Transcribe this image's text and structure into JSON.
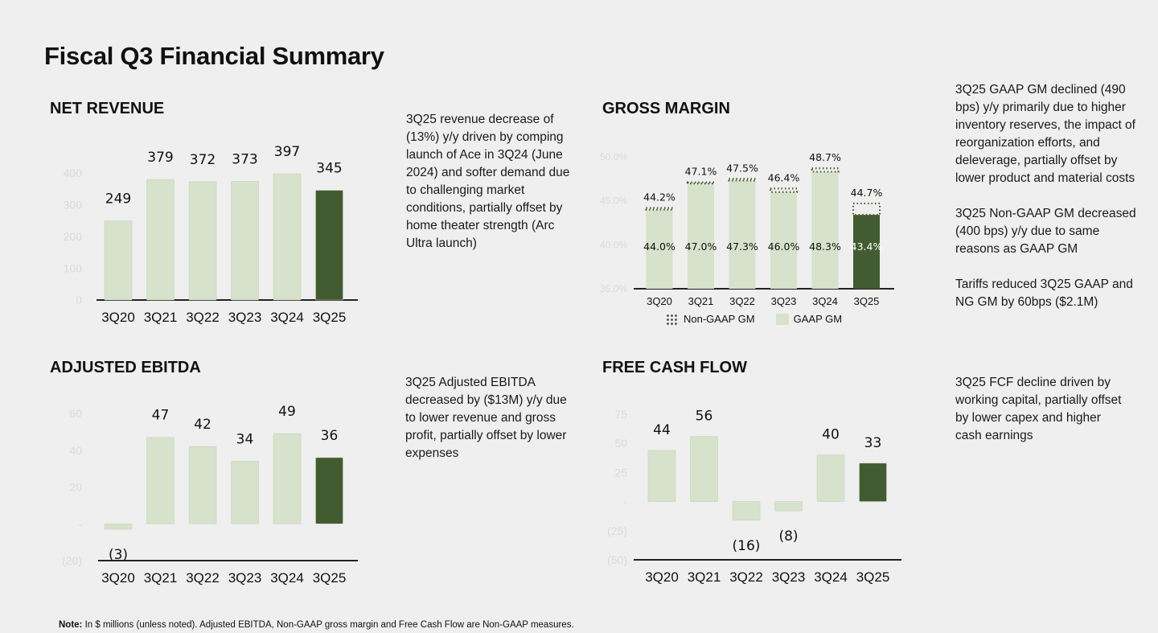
{
  "page": {
    "title": "Fiscal Q3 Financial Summary",
    "note_label": "Note:",
    "note_text": " In $ millions (unless noted). Adjusted EBITDA, Non-GAAP gross margin and Free Cash Flow are Non-GAAP measures."
  },
  "colors": {
    "light_bar": "#d6e2cb",
    "dark_bar": "#435b30",
    "axis": "#222222",
    "background": "#efefef"
  },
  "commentary": {
    "revenue": [
      "3Q25 revenue decrease of (13%) y/y driven by comping launch of Ace in 3Q24 (June 2024) and softer demand due to challenging market conditions, partially offset by home theater strength (Arc Ultra launch)"
    ],
    "gross_margin": [
      "3Q25 GAAP GM declined (490 bps) y/y primarily due to higher inventory reserves, the impact of reorganization efforts, and deleverage, partially offset by lower product and material costs",
      "3Q25 Non-GAAP GM decreased (400 bps) y/y due to same reasons as GAAP GM",
      "Tariffs reduced 3Q25 GAAP and NG GM by 60bps ($2.1M)"
    ],
    "ebitda": [
      "3Q25 Adjusted EBITDA decreased by ($13M) y/y due to lower revenue and gross profit, partially offset by lower expenses"
    ],
    "fcf": [
      "3Q25 FCF decline driven by working capital, partially offset by lower capex and higher cash earnings"
    ]
  },
  "chart_data": [
    {
      "id": "net_revenue",
      "type": "bar",
      "title": "NET REVENUE",
      "categories": [
        "3Q20",
        "3Q21",
        "3Q22",
        "3Q23",
        "3Q24",
        "3Q25"
      ],
      "values": [
        249,
        379,
        372,
        373,
        397,
        345
      ],
      "labels": [
        "249",
        "379",
        "372",
        "373",
        "397",
        "345"
      ],
      "yticks": [
        0,
        100,
        200,
        300,
        400
      ],
      "ytick_labels": [
        "0",
        "100",
        "200",
        "300",
        "400"
      ],
      "ylim": [
        0,
        430
      ],
      "highlight_last": true
    },
    {
      "id": "gross_margin",
      "type": "bar",
      "title": "GROSS MARGIN",
      "categories": [
        "3Q20",
        "3Q21",
        "3Q22",
        "3Q23",
        "3Q24",
        "3Q25"
      ],
      "series": [
        {
          "name": "GAAP GM",
          "values": [
            44.0,
            47.0,
            47.3,
            46.0,
            48.3,
            43.4
          ],
          "labels": [
            "44.0%",
            "47.0%",
            "47.3%",
            "46.0%",
            "48.3%",
            "43.4%"
          ]
        },
        {
          "name": "Non-GAAP GM",
          "values": [
            44.2,
            47.1,
            47.5,
            46.4,
            48.7,
            44.7
          ],
          "labels": [
            "44.2%",
            "47.1%",
            "47.5%",
            "46.4%",
            "48.7%",
            "44.7%"
          ]
        }
      ],
      "yticks": [
        35,
        40,
        45,
        50
      ],
      "ytick_labels": [
        "35.0%",
        "40.0%",
        "45.0%",
        "50.0%"
      ],
      "ylim": [
        35,
        50
      ],
      "legend": [
        "Non-GAAP GM",
        "GAAP GM"
      ],
      "legend_position": "bottom",
      "highlight_last": true
    },
    {
      "id": "adjusted_ebitda",
      "type": "bar",
      "title": "ADJUSTED EBITDA",
      "categories": [
        "3Q20",
        "3Q21",
        "3Q22",
        "3Q23",
        "3Q24",
        "3Q25"
      ],
      "values": [
        -3,
        47,
        42,
        34,
        49,
        36
      ],
      "labels": [
        "(3)",
        "47",
        "42",
        "34",
        "49",
        "36"
      ],
      "yticks": [
        -20,
        0,
        20,
        40,
        60
      ],
      "ytick_labels": [
        "(20)",
        "-",
        "20",
        "40",
        "60"
      ],
      "ylim": [
        -20,
        60
      ],
      "highlight_last": true
    },
    {
      "id": "free_cash_flow",
      "type": "bar",
      "title": "FREE CASH FLOW",
      "categories": [
        "3Q20",
        "3Q21",
        "3Q22",
        "3Q23",
        "3Q24",
        "3Q25"
      ],
      "values": [
        44,
        56,
        -16,
        -8,
        40,
        33
      ],
      "labels": [
        "44",
        "56",
        "(16)",
        "(8)",
        "40",
        "33"
      ],
      "yticks": [
        -50,
        -25,
        0,
        25,
        50,
        75
      ],
      "ytick_labels": [
        "(50)",
        "(25)",
        "-",
        "25",
        "50",
        "75"
      ],
      "ylim": [
        -50,
        75
      ],
      "highlight_last": true
    }
  ]
}
